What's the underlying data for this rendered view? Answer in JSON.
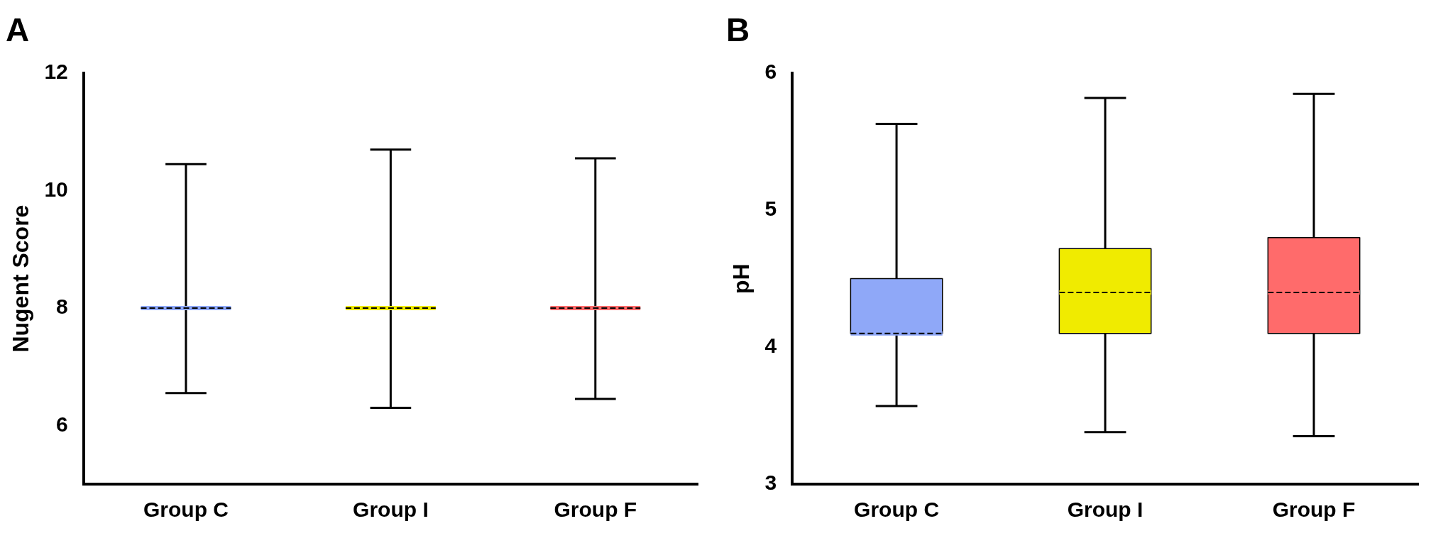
{
  "chart_data": [
    {
      "type": "box",
      "title": "A",
      "ylabel": "Nugent Score",
      "categories": [
        "Group C",
        "Group I",
        "Group F"
      ],
      "ylim": [
        5,
        12
      ],
      "yticks": [
        6,
        8,
        10,
        12
      ],
      "grid": false,
      "legend": false,
      "colors": [
        "#8fa8f8",
        "#f0eb00",
        "#ff6b6b"
      ],
      "boxes": [
        {
          "low": 6.55,
          "q1": 8,
          "median": 8,
          "q3": 8,
          "high": 10.45
        },
        {
          "low": 6.3,
          "q1": 8,
          "median": 8,
          "q3": 8,
          "high": 10.7
        },
        {
          "low": 6.45,
          "q1": 8,
          "median": 8,
          "q3": 8,
          "high": 10.55
        }
      ]
    },
    {
      "type": "box",
      "title": "B",
      "ylabel": "pH",
      "categories": [
        "Group C",
        "Group I",
        "Group F"
      ],
      "ylim": [
        3,
        6
      ],
      "yticks": [
        3,
        4,
        5,
        6
      ],
      "grid": false,
      "legend": false,
      "colors": [
        "#8fa8f8",
        "#f0eb00",
        "#ff6b6b"
      ],
      "boxes": [
        {
          "low": 3.57,
          "q1": 4.1,
          "median": 4.1,
          "q3": 4.5,
          "high": 5.63
        },
        {
          "low": 3.38,
          "q1": 4.1,
          "median": 4.4,
          "q3": 4.72,
          "high": 5.82
        },
        {
          "low": 3.35,
          "q1": 4.1,
          "median": 4.4,
          "q3": 4.8,
          "high": 5.85
        }
      ]
    }
  ]
}
